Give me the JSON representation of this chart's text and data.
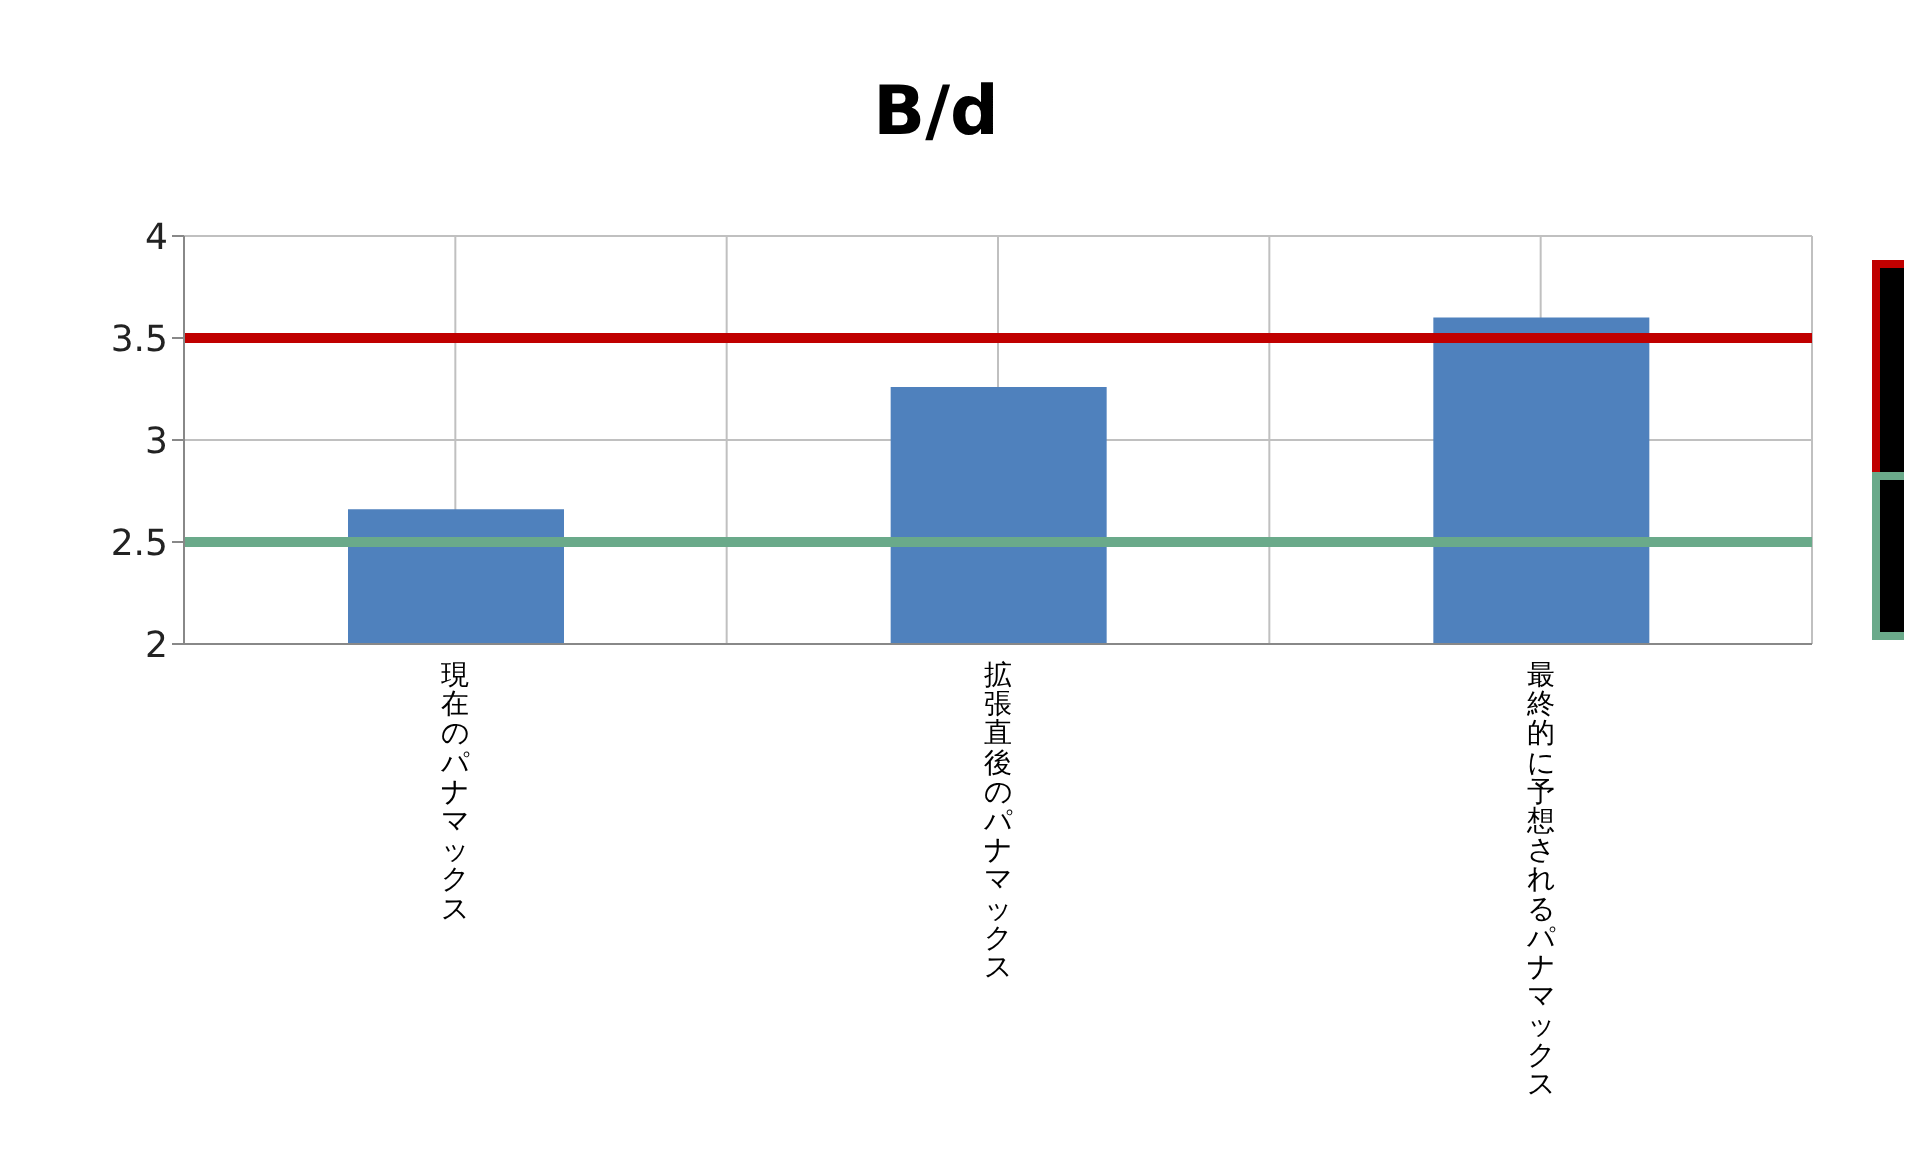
{
  "chart_data": {
    "type": "bar",
    "title": "B/d",
    "categories": [
      "現在のパナマックス",
      "拡張直後のパナマックス",
      "最終的に予想されるパナマックス"
    ],
    "values": [
      2.66,
      3.26,
      3.6
    ],
    "color": "#4f81bd",
    "ylim": [
      2,
      4
    ],
    "yticks": [
      2,
      2.5,
      3,
      3.5,
      4
    ],
    "grid": true,
    "ref_lines": [
      {
        "axis": "y",
        "value": 3.5,
        "color": "#c00000"
      },
      {
        "axis": "y",
        "value": 2.5,
        "color": "#6aaa8a"
      }
    ]
  }
}
